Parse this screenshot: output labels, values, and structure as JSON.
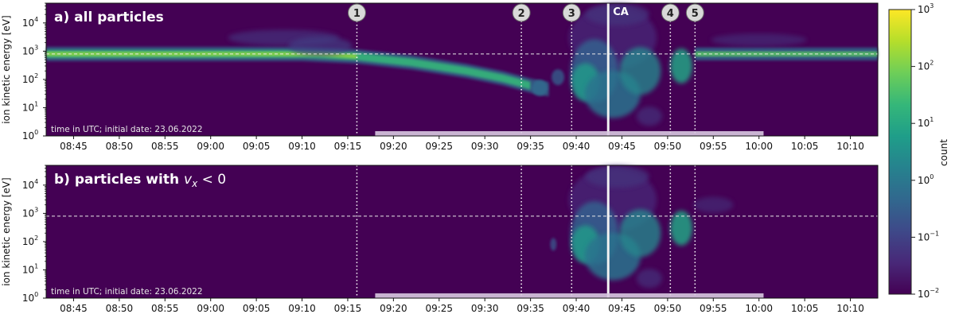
{
  "chart_data": [
    {
      "type": "heatmap",
      "title": "a) all particles",
      "ylabel": "ion kinetic energy [eV]",
      "yscale": "log",
      "ylim": [
        1,
        50000
      ],
      "x_ticks": [
        "08:45",
        "08:50",
        "08:55",
        "09:00",
        "09:05",
        "09:10",
        "09:15",
        "09:20",
        "09:25",
        "09:30",
        "09:35",
        "09:40",
        "09:45",
        "09:50",
        "09:55",
        "10:00",
        "10:05",
        "10:10"
      ],
      "xlim": [
        "08:42",
        "10:13"
      ],
      "annotation": "time in UTC; initial date: 23.06.2022",
      "reference_energy_eV": 800,
      "markers": [
        {
          "label": "1",
          "time": "09:16"
        },
        {
          "label": "2",
          "time": "09:34"
        },
        {
          "label": "3",
          "time": "09:39.5"
        },
        {
          "label": "4",
          "time": "09:50.3"
        },
        {
          "label": "5",
          "time": "09:53"
        }
      ],
      "closest_approach": {
        "label": "CA",
        "time": "09:43.5"
      },
      "highlight_interval": [
        "09:18",
        "10:00.5"
      ]
    },
    {
      "type": "heatmap",
      "title_prefix": "b) particles with ",
      "title_math": "v",
      "title_sub": "x",
      "title_suffix": " < 0",
      "ylabel": "ion kinetic energy [eV]",
      "yscale": "log",
      "ylim": [
        1,
        50000
      ],
      "x_ticks": [
        "08:45",
        "08:50",
        "08:55",
        "09:00",
        "09:05",
        "09:10",
        "09:15",
        "09:20",
        "09:25",
        "09:30",
        "09:35",
        "09:40",
        "09:45",
        "09:50",
        "09:55",
        "10:00",
        "10:05",
        "10:10"
      ],
      "xlim": [
        "08:42",
        "10:13"
      ],
      "annotation": "time in UTC; initial date: 23.06.2022",
      "reference_energy_eV": 800,
      "markers": [
        {
          "label": "1",
          "time": "09:16"
        },
        {
          "label": "2",
          "time": "09:34"
        },
        {
          "label": "3",
          "time": "09:39.5"
        },
        {
          "label": "4",
          "time": "09:50.3"
        },
        {
          "label": "5",
          "time": "09:53"
        }
      ],
      "closest_approach": {
        "label": "CA",
        "time": "09:43.5"
      },
      "highlight_interval": [
        "09:18",
        "10:00.5"
      ]
    }
  ],
  "colorbar": {
    "label": "count",
    "scale": "log",
    "range": [
      0.01,
      1000
    ],
    "ticks": [
      {
        "base": "10",
        "exp": "3"
      },
      {
        "base": "10",
        "exp": "2"
      },
      {
        "base": "10",
        "exp": "1"
      },
      {
        "base": "10",
        "exp": "0"
      },
      {
        "base": "10",
        "exp": "−1"
      },
      {
        "base": "10",
        "exp": "−2"
      }
    ],
    "colormap": [
      "#440154",
      "#482878",
      "#3e4989",
      "#31688e",
      "#26828e",
      "#1f9e89",
      "#35b779",
      "#6ece58",
      "#b5de2b",
      "#fde725"
    ]
  },
  "y_ticks": [
    {
      "base": "10",
      "exp": "0"
    },
    {
      "base": "10",
      "exp": "1"
    },
    {
      "base": "10",
      "exp": "2"
    },
    {
      "base": "10",
      "exp": "3"
    },
    {
      "base": "10",
      "exp": "4"
    }
  ],
  "colors": {
    "background": "#440154",
    "marker_line": "#ffffff",
    "marker_circle": "#d9d9d9",
    "ca_line": "#f2f2f2",
    "highlight_bar": "#d8c8e0"
  }
}
